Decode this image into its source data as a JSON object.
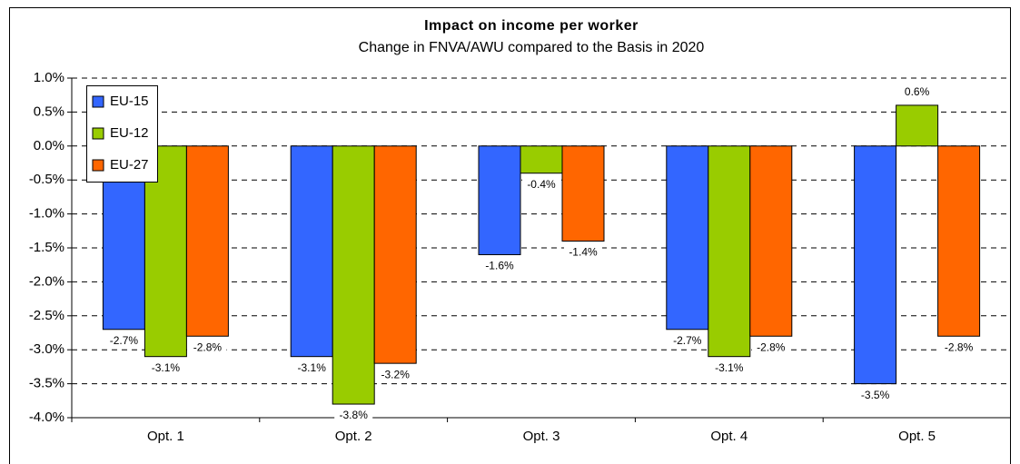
{
  "chart_data": {
    "type": "bar",
    "title": "Impact on income per worker",
    "subtitle": "Change in FNVA/AWU compared to the Basis in 2020",
    "categories": [
      "Opt. 1",
      "Opt. 2",
      "Opt. 3",
      "Opt. 4",
      "Opt. 5"
    ],
    "series": [
      {
        "name": "EU-15",
        "color": "#3366ff",
        "values": [
          -2.7,
          -3.1,
          -1.6,
          -2.7,
          -3.5
        ],
        "value_labels": [
          "-2.7%",
          "-3.1%",
          "-1.6%",
          "-2.7%",
          "-3.5%"
        ]
      },
      {
        "name": "EU-12",
        "color": "#99cc00",
        "values": [
          -3.1,
          -3.8,
          -0.4,
          -3.1,
          0.6
        ],
        "value_labels": [
          "-3.1%",
          "-3.8%",
          "-0.4%",
          "-3.1%",
          "0.6%"
        ]
      },
      {
        "name": "EU-27",
        "color": "#ff6600",
        "values": [
          -2.8,
          -3.2,
          -1.4,
          -2.8,
          -2.8
        ],
        "value_labels": [
          "-2.8%",
          "-3.2%",
          "-1.4%",
          "-2.8%",
          "-2.8%"
        ]
      }
    ],
    "ylim": [
      -4.0,
      1.0
    ],
    "yticks": [
      {
        "value": 1.0,
        "label": "1.0%"
      },
      {
        "value": 0.5,
        "label": "0.5%"
      },
      {
        "value": 0.0,
        "label": "0.0%"
      },
      {
        "value": -0.5,
        "label": "-0.5%"
      },
      {
        "value": -1.0,
        "label": "-1.0%"
      },
      {
        "value": -1.5,
        "label": "-1.5%"
      },
      {
        "value": -2.0,
        "label": "-2.0%"
      },
      {
        "value": -2.5,
        "label": "-2.5%"
      },
      {
        "value": -3.0,
        "label": "-3.0%"
      },
      {
        "value": -3.5,
        "label": "-3.5%"
      },
      {
        "value": -4.0,
        "label": "-4.0%"
      }
    ],
    "grid": true,
    "legend": "upper left"
  }
}
